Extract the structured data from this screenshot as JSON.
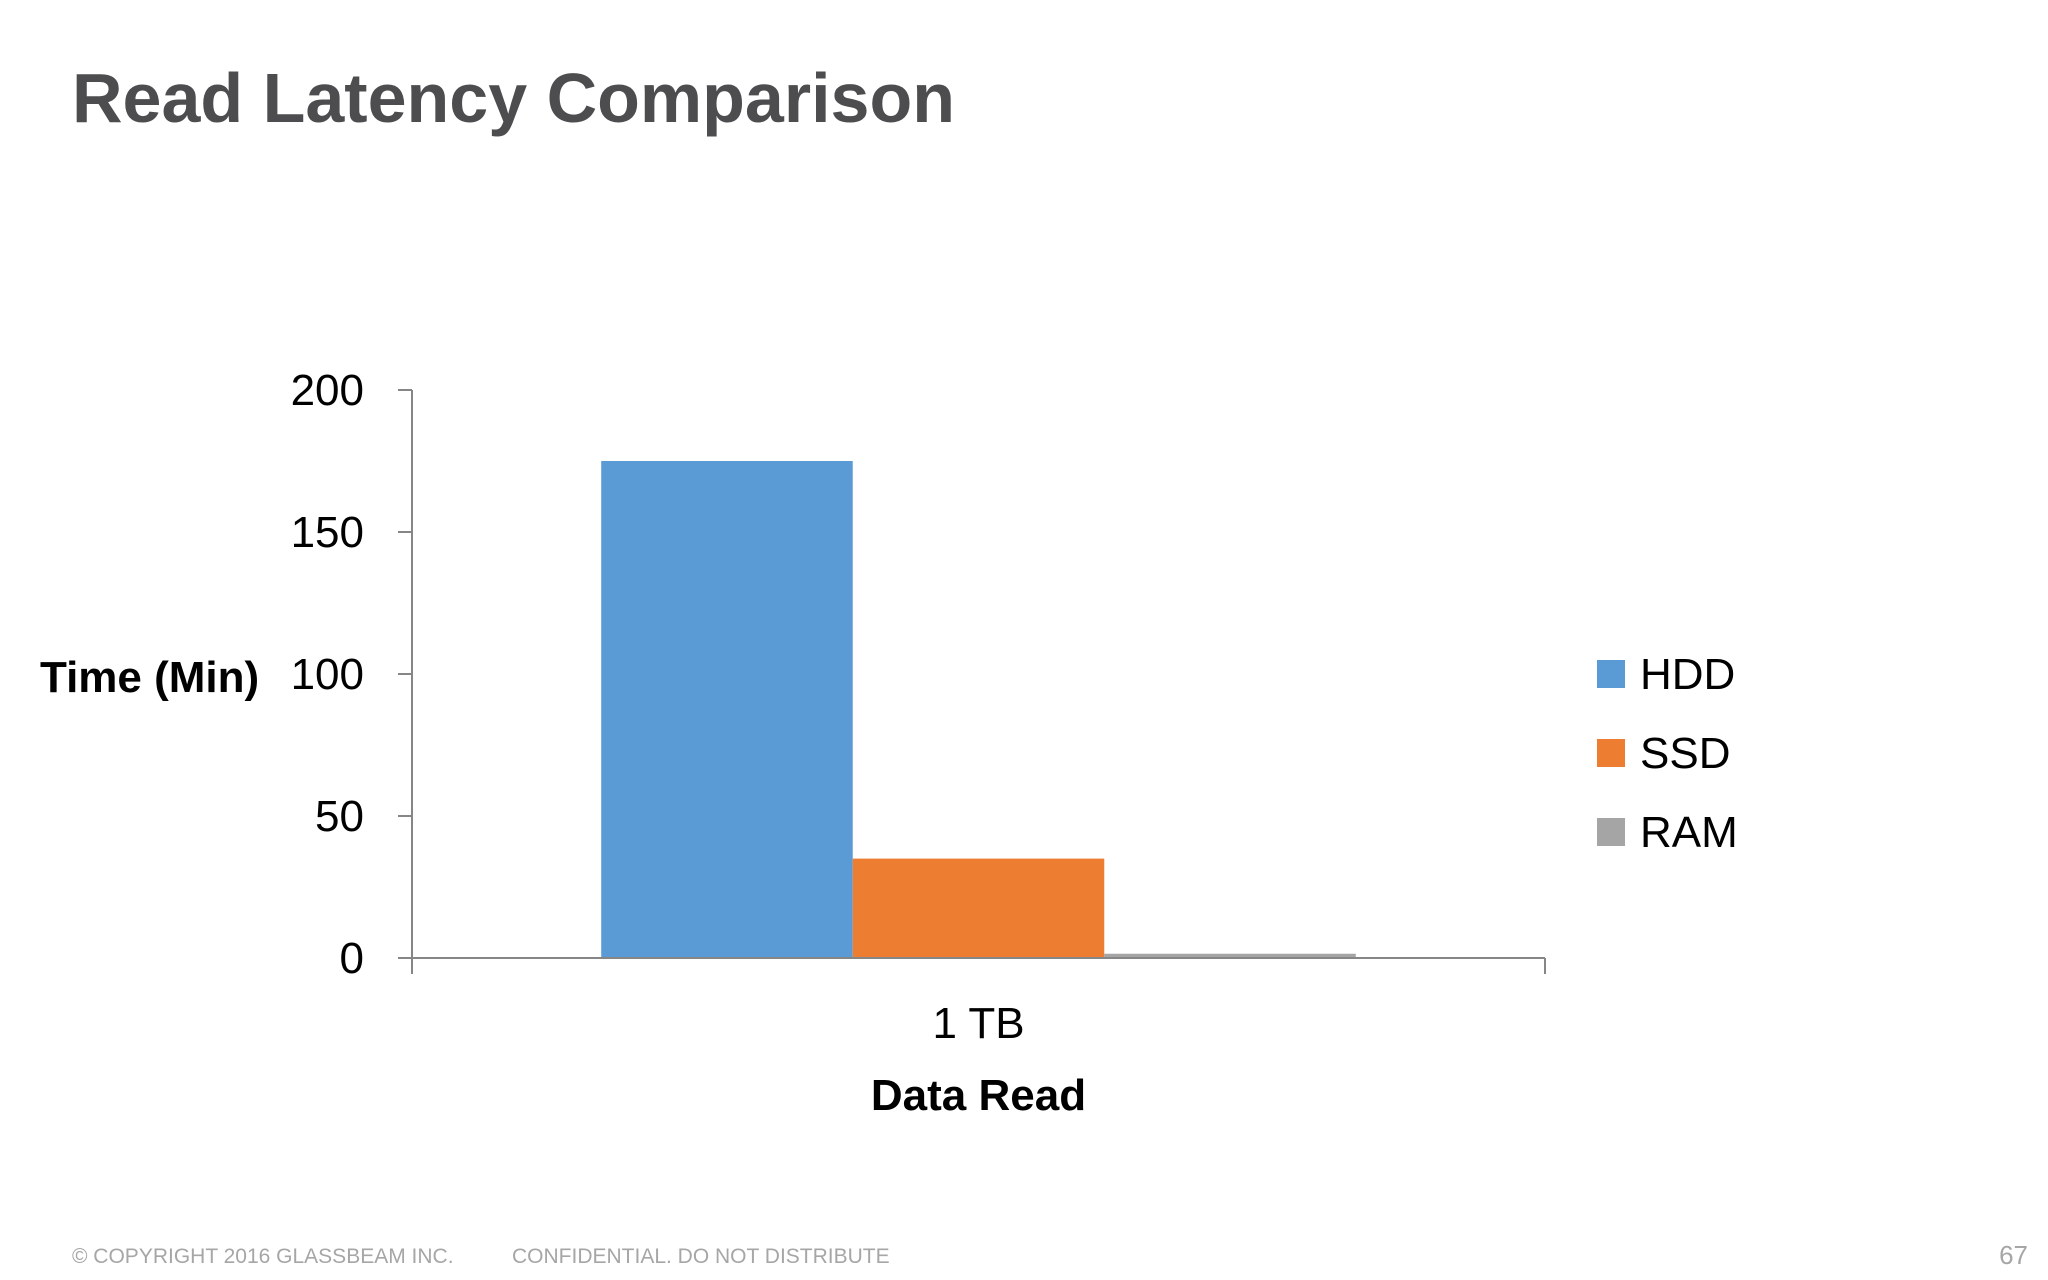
{
  "slide": {
    "title": "Read Latency Comparison"
  },
  "chart_data": {
    "type": "bar",
    "categories": [
      "1 TB"
    ],
    "series": [
      {
        "name": "HDD",
        "values": [
          175
        ],
        "color": "#5b9bd5"
      },
      {
        "name": "SSD",
        "values": [
          35
        ],
        "color": "#ed7d31"
      },
      {
        "name": "RAM",
        "values": [
          1.5
        ],
        "color": "#a5a5a5"
      }
    ],
    "xlabel": "Data Read",
    "ylabel": "Time (Min)",
    "ylim": [
      0,
      200
    ],
    "yticks": [
      "0",
      "50",
      "100",
      "150",
      "200"
    ],
    "grid": false,
    "legend": "right"
  },
  "footer": {
    "copyright": "© COPYRIGHT 2016  GLASSBEAM INC.",
    "confidential": "CONFIDENTIAL. DO NOT DISTRIBUTE",
    "page_number": "67"
  }
}
